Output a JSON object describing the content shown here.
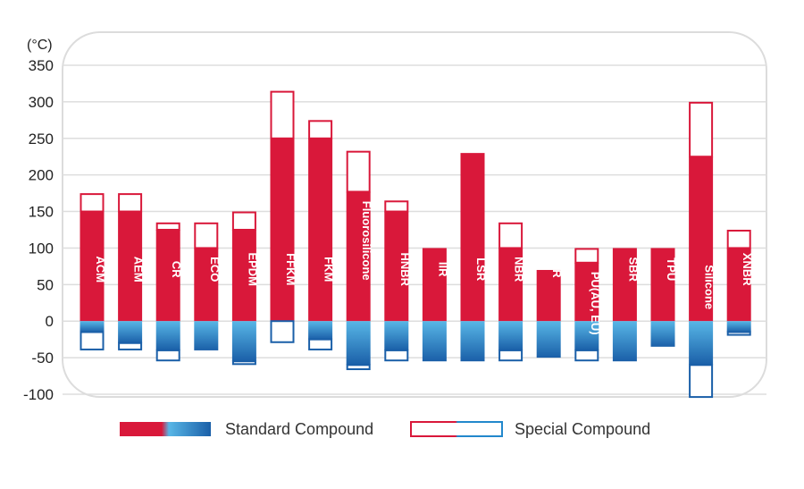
{
  "chart_data": {
    "type": "bar",
    "unit_label": "(°C)",
    "y_ticks": [
      "350",
      "300",
      "250",
      "200",
      "150",
      "100",
      "50",
      "0",
      "-50",
      "-100"
    ],
    "ylim": [
      -100,
      350
    ],
    "grid": true,
    "legend_position": "bottom",
    "series": [
      {
        "name": "Standard Compound"
      },
      {
        "name": "Special Compound"
      }
    ],
    "categories": [
      "ACM",
      "AEM",
      "CR",
      "ECO",
      "EPDM",
      "FFKM",
      "FKM",
      "Fluorosilicone",
      "HNBR",
      "IIR",
      "LSR",
      "NBR",
      "NR",
      "PU(AU, EU)",
      "SBR",
      "TPU",
      "Silicone",
      "XNBR"
    ],
    "standard_high": [
      150,
      150,
      125,
      100,
      125,
      250,
      250,
      177,
      150,
      100,
      230,
      100,
      70,
      80,
      100,
      100,
      225,
      100
    ],
    "standard_low": [
      -15,
      -30,
      -40,
      -40,
      -55,
      0,
      -25,
      -60,
      -40,
      -55,
      -55,
      -40,
      -50,
      -40,
      -55,
      -35,
      -60,
      -15
    ],
    "special_high": [
      175,
      175,
      135,
      135,
      150,
      315,
      275,
      233,
      165,
      100,
      230,
      135,
      70,
      100,
      100,
      100,
      300,
      125
    ],
    "special_low": [
      -40,
      -40,
      -55,
      -40,
      -60,
      -30,
      -40,
      -67,
      -55,
      -55,
      -55,
      -55,
      -50,
      -55,
      -55,
      -35,
      -105,
      -20
    ],
    "colors": {
      "red": "#d9183a",
      "blue": "#2288cc",
      "dark_blue": "#1a5fa8",
      "light_blue": "#58b6e6",
      "grid": "#dddddd",
      "frame": "#dcdcdc"
    }
  }
}
